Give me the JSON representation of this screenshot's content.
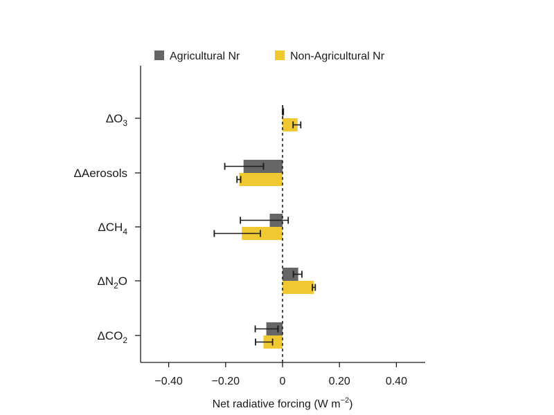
{
  "chart_data": {
    "type": "bar",
    "orientation": "horizontal",
    "title": "",
    "xlabel": "Net radiative forcing (W m−2)",
    "xlabel_parts": {
      "main": "Net radiative forcing (W m",
      "sup": "−2",
      "close": ")"
    },
    "ylabel": "",
    "xlim": [
      -0.5,
      0.5
    ],
    "xticks": [
      -0.4,
      -0.2,
      0,
      0.2,
      0.4
    ],
    "xtick_labels": [
      "−0.40",
      "−0.20",
      "0",
      "0.20",
      "0.40"
    ],
    "categories": [
      "ΔO3",
      "ΔAerosols",
      "ΔCH4",
      "ΔN2O",
      "ΔCO2"
    ],
    "category_parts": [
      {
        "main": "ΔO",
        "sub": "3",
        "tail": ""
      },
      {
        "main": "ΔAerosols",
        "sub": "",
        "tail": ""
      },
      {
        "main": "ΔCH",
        "sub": "4",
        "tail": ""
      },
      {
        "main": "ΔN",
        "sub": "2",
        "tail": "O"
      },
      {
        "main": "ΔCO",
        "sub": "2",
        "tail": ""
      }
    ],
    "series": [
      {
        "name": "Agricultural Nr",
        "color": "#666666",
        "values": [
          0.002,
          -0.137,
          -0.045,
          0.055,
          -0.057
        ],
        "error_low": [
          0.0,
          -0.203,
          -0.148,
          0.038,
          -0.096
        ],
        "error_high": [
          0.003,
          -0.067,
          0.02,
          0.068,
          -0.016
        ]
      },
      {
        "name": "Non-Agricultural Nr",
        "color": "#f0c832",
        "values": [
          0.053,
          -0.152,
          -0.143,
          0.11,
          -0.067
        ],
        "error_low": [
          0.037,
          -0.16,
          -0.24,
          0.105,
          -0.095
        ],
        "error_high": [
          0.064,
          -0.147,
          -0.078,
          0.115,
          -0.035
        ]
      }
    ],
    "reference_line": {
      "x": 0,
      "style": "dashed"
    },
    "legend": "top",
    "grid": false
  }
}
